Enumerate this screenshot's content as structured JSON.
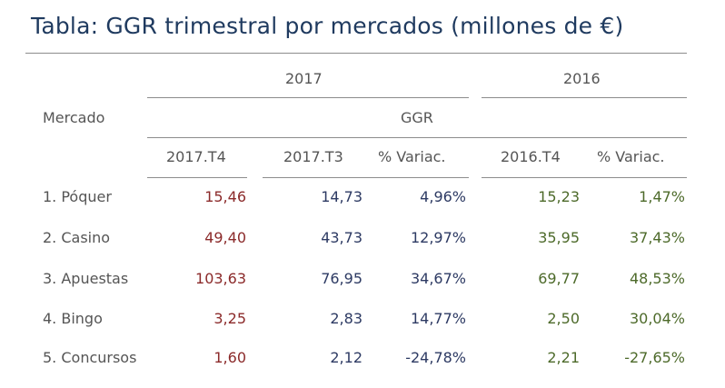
{
  "chart_data": {
    "type": "table",
    "title": "Tabla: GGR trimestral por mercados (millones de €)",
    "header": {
      "mercado": "Mercado",
      "year_2017": "2017",
      "year_2016": "2016",
      "ggr": "GGR",
      "columns": [
        "2017.T4",
        "2017.T3",
        "% Variac.",
        "2016.T4",
        "% Variac."
      ]
    },
    "rows": [
      {
        "label": "1. Póquer",
        "values": [
          "15,46",
          "14,73",
          "4,96%",
          "15,23",
          "1,47%"
        ]
      },
      {
        "label": "2. Casino",
        "values": [
          "49,40",
          "43,73",
          "12,97%",
          "35,95",
          "37,43%"
        ]
      },
      {
        "label": "3. Apuestas",
        "values": [
          "103,63",
          "76,95",
          "34,67%",
          "69,77",
          "48,53%"
        ]
      },
      {
        "label": "4. Bingo",
        "values": [
          "3,25",
          "2,83",
          "14,77%",
          "2,50",
          "30,04%"
        ]
      },
      {
        "label": "5. Concursos",
        "values": [
          "1,60",
          "2,12",
          "-24,78%",
          "2,21",
          "-27,65%"
        ]
      }
    ],
    "colors": {
      "title": "#1f3a5f",
      "col_2017T4": "#8b2a2a",
      "col_2017": "#2d3a63",
      "col_2016": "#4d6a2a"
    }
  }
}
